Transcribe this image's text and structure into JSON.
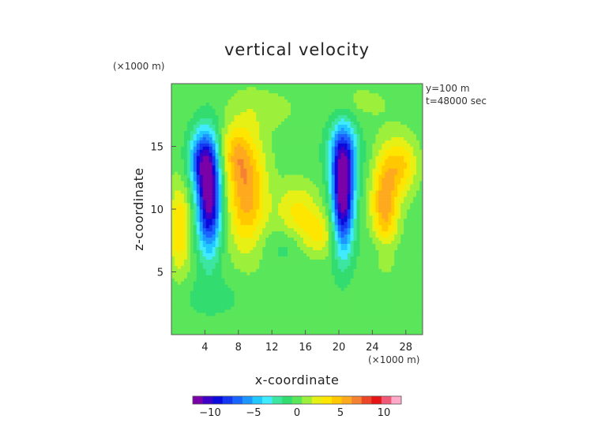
{
  "chart_data": {
    "type": "heatmap",
    "title": "vertical velocity",
    "xlabel": "x-coordinate",
    "ylabel": "z-coordinate",
    "x_unit": "(×1000 m)",
    "y_unit": "(×1000 m)",
    "annotations": [
      "y=100  m",
      "t=48000 sec"
    ],
    "xlim": [
      0,
      30
    ],
    "ylim": [
      0,
      20
    ],
    "xticks": [
      4,
      8,
      12,
      16,
      20,
      24,
      28
    ],
    "xtick_labels": [
      "4",
      "8",
      "12",
      "16",
      "20",
      "24",
      "28"
    ],
    "yticks": [
      5,
      10,
      15
    ],
    "ytick_labels": [
      "5",
      "10",
      "15"
    ],
    "colorbar": {
      "range": [
        -12,
        12
      ],
      "ticks": [
        -10,
        -5,
        0,
        5,
        10
      ],
      "tick_labels": [
        "−10",
        "−5",
        "0",
        "5",
        "10"
      ]
    },
    "features": [
      {
        "x": 4.5,
        "z": 11.0,
        "value": -12,
        "sx": 1.0,
        "sz": 3.0
      },
      {
        "x": 3.5,
        "z": 14.0,
        "value": -6,
        "sx": 1.1,
        "sz": 1.6
      },
      {
        "x": 20.5,
        "z": 11.0,
        "value": -12,
        "sx": 0.9,
        "sz": 3.0
      },
      {
        "x": 20.5,
        "z": 14.5,
        "value": -5,
        "sx": 1.3,
        "sz": 1.8
      },
      {
        "x": 1.0,
        "z": 8.5,
        "value": 4,
        "sx": 0.9,
        "sz": 2.5
      },
      {
        "x": 9.0,
        "z": 11.5,
        "value": 6,
        "sx": 1.6,
        "sz": 3.2
      },
      {
        "x": 7.5,
        "z": 14.5,
        "value": 3,
        "sx": 1.2,
        "sz": 1.5
      },
      {
        "x": 15.0,
        "z": 10.0,
        "value": 3,
        "sx": 1.8,
        "sz": 1.5
      },
      {
        "x": 17.5,
        "z": 8.0,
        "value": 3,
        "sx": 1.6,
        "sz": 1.2
      },
      {
        "x": 25.5,
        "z": 10.5,
        "value": 6,
        "sx": 1.1,
        "sz": 2.6
      },
      {
        "x": 27.5,
        "z": 13.5,
        "value": 4,
        "sx": 1.3,
        "sz": 1.6
      },
      {
        "x": 11.0,
        "z": 18.0,
        "value": 1,
        "sx": 3.0,
        "sz": 1.2
      },
      {
        "x": 22.0,
        "z": 18.5,
        "value": 1,
        "sx": 3.0,
        "sz": 1.0
      },
      {
        "x": 13.5,
        "z": 7.0,
        "value": -1,
        "sx": 2.0,
        "sz": 1.0
      },
      {
        "x": 25.0,
        "z": 7.0,
        "value": -1,
        "sx": 1.5,
        "sz": 0.8
      },
      {
        "x": 5.0,
        "z": 3.0,
        "value": -1,
        "sx": 3.0,
        "sz": 1.2
      }
    ]
  }
}
